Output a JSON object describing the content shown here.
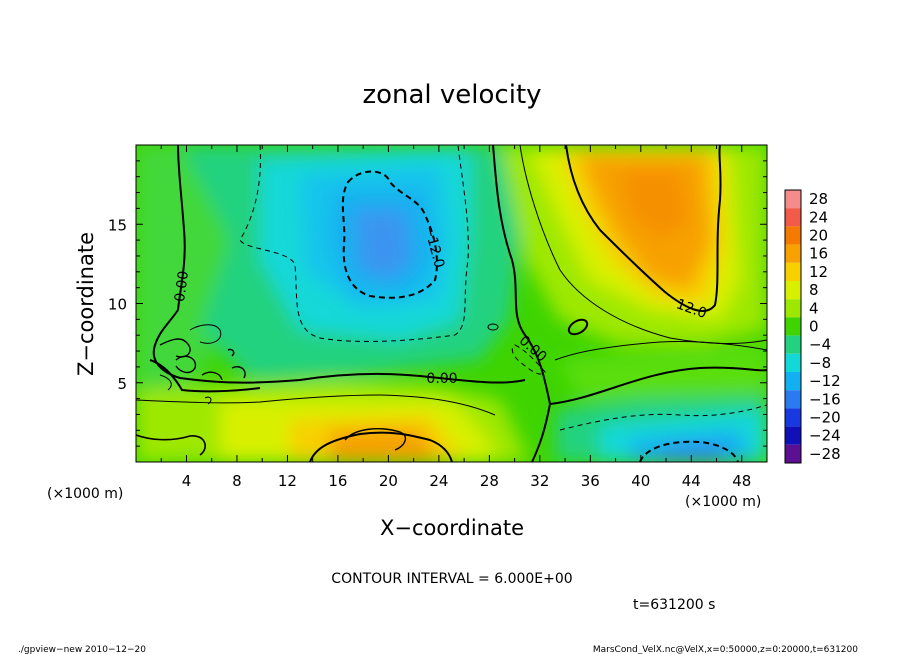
{
  "chart_data": {
    "type": "heatmap",
    "title": "zonal velocity",
    "xlabel": "X−coordinate",
    "ylabel": "Z−coordinate",
    "x_unit_note": "(×1000 m)",
    "y_unit_note": "(×1000 m)",
    "xlim": [
      0,
      50
    ],
    "ylim": [
      0,
      20
    ],
    "x_ticks": [
      4,
      8,
      12,
      16,
      20,
      24,
      28,
      32,
      36,
      40,
      44,
      48
    ],
    "y_ticks": [
      5,
      10,
      15
    ],
    "colorbar": {
      "levels": [
        28,
        24,
        20,
        16,
        12,
        8,
        4,
        0,
        -4,
        -8,
        -12,
        -16,
        -20,
        -24,
        -28
      ],
      "tick_labels": [
        "28",
        "24",
        "20",
        "16",
        "12",
        "8",
        "4",
        "0",
        "−4",
        "−8",
        "−12",
        "−16",
        "−20",
        "−24",
        "−28"
      ],
      "colors": [
        "#f48c8c",
        "#f25a4a",
        "#f57a00",
        "#f7a100",
        "#f8d000",
        "#d8f000",
        "#9ee800",
        "#3fd400",
        "#23d27f",
        "#12d8d8",
        "#12b0f0",
        "#2a7af0",
        "#1838e0",
        "#1010b8",
        "#5a1090"
      ]
    },
    "contour_interval_text": "CONTOUR INTERVAL = 6.000E+00",
    "contour_labels": [
      "0.00",
      "0.00",
      "0.00",
      "12.0",
      "−12.0"
    ],
    "time_text": "t=631200 s",
    "footer_left": "./gpview−new  2010−12−20",
    "footer_right": "MarsCond_VelX.nc@VelX,x=0:50000,z=0:20000,t=631200"
  }
}
